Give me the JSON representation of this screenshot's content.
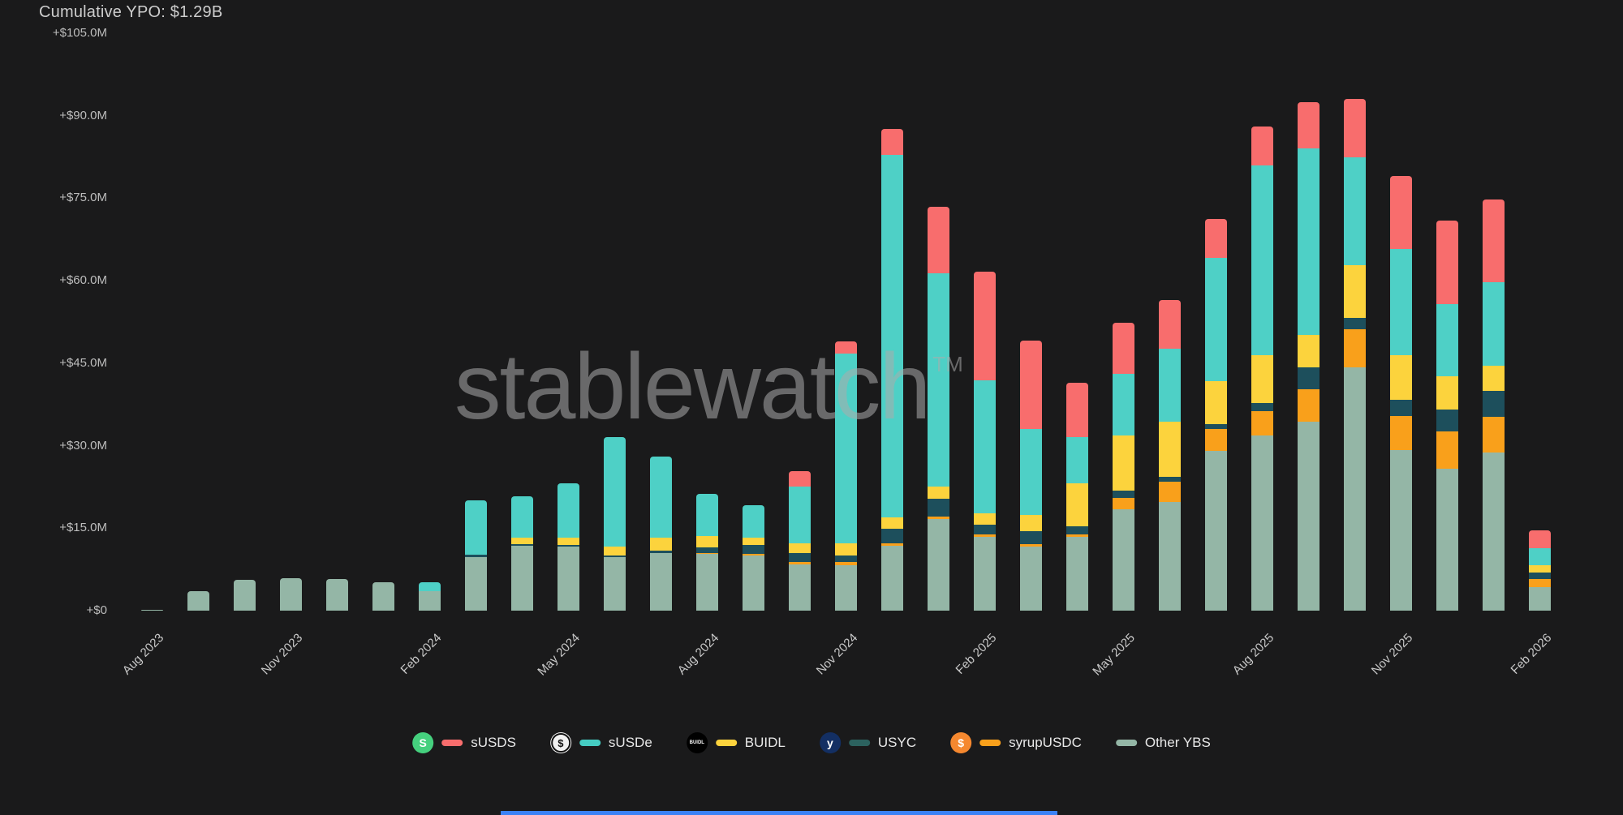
{
  "header": {
    "title": "Cumulative YPO: $1.29B"
  },
  "watermark": {
    "text": "stablewatch",
    "tm": "TM"
  },
  "accent": {
    "bottom_bar_color": "#3b82f6"
  },
  "legend": {
    "items": [
      {
        "label": "sUSDS",
        "dash_color": "#f86d6d",
        "icon": "susds-coin",
        "icon_bg": "#45d07e",
        "icon_text": "S",
        "icon_fg": "#ffffff"
      },
      {
        "label": "sUSDe",
        "dash_color": "#45ccc2",
        "icon": "susde-coin",
        "icon_bg": "#f2f2f2",
        "icon_text": "$",
        "icon_fg": "#111111"
      },
      {
        "label": "BUIDL",
        "dash_color": "#fcd33d",
        "icon": "buidl-coin",
        "icon_bg": "#000000",
        "icon_text": "BUIDL",
        "icon_fg": "#ffffff"
      },
      {
        "label": "USYC",
        "dash_color": "#2c625f",
        "icon": "usyc-coin",
        "icon_bg": "#132f63",
        "icon_text": "y",
        "icon_fg": "#ffffff"
      },
      {
        "label": "syrupUSDC",
        "dash_color": "#f9a01b",
        "icon": "syrupusdc-coin",
        "icon_bg": "#f5882f",
        "icon_text": "$",
        "icon_fg": "#ffffff"
      },
      {
        "label": "Other YBS",
        "dash_color": "#94b6a6",
        "icon": null,
        "icon_bg": null,
        "icon_text": null,
        "icon_fg": null
      }
    ]
  },
  "chart_data": {
    "type": "bar",
    "stacked": true,
    "title": "Cumulative YPO: $1.29B",
    "unit": "millions USD",
    "ylim": [
      0,
      105
    ],
    "grid": false,
    "legend_position": "bottom",
    "categories": [
      "Aug 2023",
      "Sep 2023",
      "Oct 2023",
      "Nov 2023",
      "Dec 2023",
      "Jan 2024",
      "Feb 2024",
      "Mar 2024",
      "Apr 2024",
      "May 2024",
      "Jun 2024",
      "Jul 2024",
      "Aug 2024",
      "Sep 2024",
      "Oct 2024",
      "Nov 2024",
      "Dec 2024",
      "Jan 2025",
      "Feb 2025",
      "Mar 2025",
      "Apr 2025",
      "May 2025",
      "Jun 2025",
      "Jul 2025",
      "Aug 2025",
      "Sep 2025",
      "Oct 2025",
      "Nov 2025",
      "Dec 2025",
      "Jan 2026",
      "Feb 2026"
    ],
    "x_tick_shown_indices": [
      0,
      3,
      6,
      9,
      12,
      15,
      18,
      21,
      24,
      27,
      30
    ],
    "y_ticks": [
      {
        "label": "+$105.0M",
        "value": 105
      },
      {
        "label": "+$90.0M",
        "value": 90
      },
      {
        "label": "+$75.0M",
        "value": 75
      },
      {
        "label": "+$60.0M",
        "value": 60
      },
      {
        "label": "+$45.0M",
        "value": 45
      },
      {
        "label": "+$30.0M",
        "value": 30
      },
      {
        "label": "+$15.0M",
        "value": 15
      },
      {
        "label": "+$0",
        "value": 0
      }
    ],
    "series": [
      {
        "name": "Other YBS",
        "color": "#94b6a6",
        "values": [
          0.2,
          3.6,
          5.6,
          5.9,
          5.8,
          5.1,
          3.6,
          9.8,
          11.8,
          11.7,
          9.8,
          10.4,
          10.3,
          10.0,
          8.4,
          8.3,
          11.8,
          16.6,
          13.4,
          11.7,
          13.4,
          18.5,
          19.8,
          29.0,
          31.8,
          34.4,
          44.2,
          29.2,
          25.8,
          28.8,
          4.3
        ]
      },
      {
        "name": "syrupUSDC",
        "color": "#f9a01b",
        "values": [
          0,
          0,
          0,
          0,
          0,
          0,
          0,
          0,
          0,
          0,
          0,
          0,
          0.2,
          0.3,
          0.4,
          0.6,
          0.5,
          0.5,
          0.4,
          0.4,
          0.5,
          2.0,
          3.7,
          4.1,
          4.5,
          5.8,
          6.9,
          6.2,
          6.8,
          6.4,
          1.4
        ]
      },
      {
        "name": "USYC",
        "color": "#1d4f5c",
        "values": [
          0,
          0,
          0,
          0,
          0,
          0,
          0,
          0.4,
          0.3,
          0.2,
          0.2,
          0.5,
          1.0,
          1.6,
          1.6,
          1.2,
          2.6,
          3.2,
          1.8,
          2.4,
          1.4,
          1.3,
          0.8,
          0.8,
          1.5,
          4.0,
          2.2,
          3.0,
          4.0,
          4.7,
          1.3
        ]
      },
      {
        "name": "BUIDL",
        "color": "#fcd33d",
        "values": [
          0,
          0,
          0,
          0,
          0,
          0,
          0,
          0,
          1.2,
          1.4,
          1.7,
          2.4,
          2.0,
          1.4,
          1.8,
          2.2,
          2.0,
          2.3,
          2.1,
          2.9,
          7.8,
          10.1,
          10.1,
          7.9,
          8.6,
          5.9,
          9.5,
          8.0,
          6.0,
          4.6,
          1.2
        ]
      },
      {
        "name": "sUSDe",
        "color": "#4ed0c6",
        "values": [
          0,
          0,
          0,
          0,
          0,
          0,
          1.5,
          9.9,
          7.5,
          9.8,
          19.8,
          14.7,
          7.7,
          5.8,
          10.3,
          34.4,
          66.0,
          38.8,
          24.2,
          15.6,
          8.4,
          11.2,
          13.3,
          22.4,
          34.6,
          34.0,
          19.6,
          19.3,
          13.2,
          15.2,
          3.2
        ]
      },
      {
        "name": "sUSDS",
        "color": "#f86d6d",
        "values": [
          0,
          0,
          0,
          0,
          0,
          0,
          0,
          0,
          0,
          0,
          0,
          0,
          0,
          0,
          2.9,
          2.2,
          4.7,
          12.1,
          19.8,
          16.1,
          10.0,
          9.2,
          8.8,
          7.1,
          7.1,
          8.3,
          10.6,
          13.4,
          15.1,
          15.0,
          3.2
        ]
      }
    ]
  }
}
